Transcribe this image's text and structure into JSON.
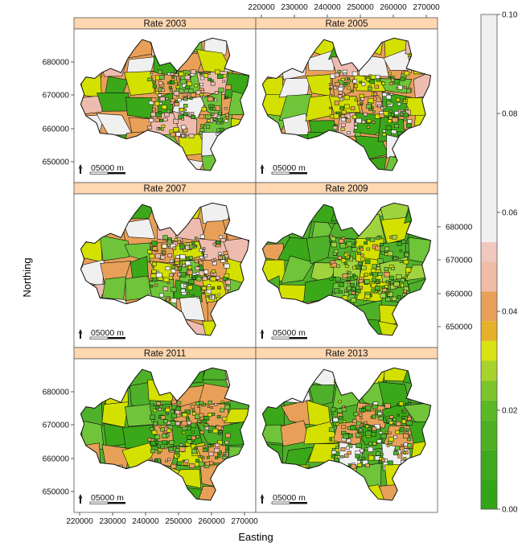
{
  "figure": {
    "x_axis_title": "Easting",
    "y_axis_title": "Northing",
    "easting_ticks": [
      "220000",
      "230000",
      "240000",
      "250000",
      "260000",
      "270000"
    ],
    "northing_ticks": [
      "680000",
      "670000",
      "660000",
      "650000"
    ],
    "scalebar_label": "05000 m",
    "north_arrow": "north-arrow-icon"
  },
  "panels": [
    {
      "title": "Rate 2003",
      "palette": [
        "#e8a058",
        "#eebcae",
        "#f0f0f0",
        "#d4e000",
        "#3aa818",
        "#6fc43a"
      ]
    },
    {
      "title": "Rate 2005",
      "palette": [
        "#e8a058",
        "#f0f0f0",
        "#3aa818",
        "#eebcae",
        "#d4e000",
        "#6fc43a"
      ]
    },
    {
      "title": "Rate 2007",
      "palette": [
        "#e8a058",
        "#f0f0f0",
        "#eebcae",
        "#3aa818",
        "#d4e000",
        "#6fc43a"
      ]
    },
    {
      "title": "Rate 2009",
      "palette": [
        "#4fb02a",
        "#6fc43a",
        "#3aa818",
        "#9fd43e",
        "#d4e000",
        "#e8a058"
      ]
    },
    {
      "title": "Rate 2011",
      "palette": [
        "#4fb02a",
        "#6fc43a",
        "#3aa818",
        "#e8a058",
        "#eebcae",
        "#d4e000"
      ]
    },
    {
      "title": "Rate 2013",
      "palette": [
        "#4fb02a",
        "#3aa818",
        "#d4e000",
        "#e8a058",
        "#6fc43a",
        "#f0f0f0"
      ]
    }
  ],
  "colorbar": {
    "ticks": [
      "0.10",
      "0.08",
      "0.06",
      "0.04",
      "0.02",
      "0.00"
    ],
    "classes": [
      {
        "from": 0.0,
        "to": 0.006,
        "color": "#33a318"
      },
      {
        "from": 0.006,
        "to": 0.012,
        "color": "#3fa91d"
      },
      {
        "from": 0.012,
        "to": 0.018,
        "color": "#4cb022"
      },
      {
        "from": 0.018,
        "to": 0.022,
        "color": "#5bb827"
      },
      {
        "from": 0.022,
        "to": 0.026,
        "color": "#7cc42b"
      },
      {
        "from": 0.026,
        "to": 0.03,
        "color": "#a8d22c"
      },
      {
        "from": 0.03,
        "to": 0.034,
        "color": "#d9e213"
      },
      {
        "from": 0.034,
        "to": 0.038,
        "color": "#e5b12a"
      },
      {
        "from": 0.038,
        "to": 0.044,
        "color": "#e8a058"
      },
      {
        "from": 0.044,
        "to": 0.05,
        "color": "#efbca8"
      },
      {
        "from": 0.05,
        "to": 0.054,
        "color": "#f0c8c0"
      },
      {
        "from": 0.054,
        "to": 0.1,
        "color": "#f0f0f0"
      }
    ]
  },
  "colors": {
    "strip": "#ffd7b0",
    "boundary": "#111111",
    "frame": "#555555"
  }
}
